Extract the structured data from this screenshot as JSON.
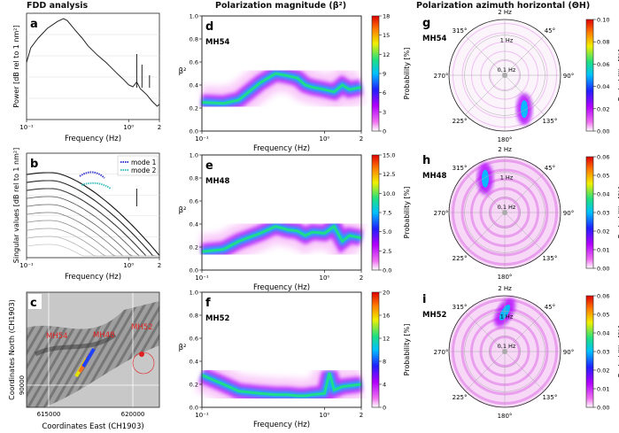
{
  "titles": {
    "fdd": "FDD analysis",
    "magnitude": "Polarization magnitude (β²)",
    "azimuth": "Polarization azimuth horizontal (ΘH)"
  },
  "colors": {
    "power_line": "#222222",
    "mode1": "#3a3ad0",
    "mode2": "#40c0c0",
    "grid": "#dddddd",
    "colormap": [
      "#ffffff",
      "#f070f0",
      "#b000ff",
      "#2020ff",
      "#00c0ff",
      "#20e080",
      "#f0f000",
      "#ff8000",
      "#e00000"
    ]
  },
  "panels": {
    "a": {
      "letter": "a",
      "ylabel": "Power [dB rel to 1 nm²]",
      "xlabel": "Frequency (Hz)",
      "xticks": [
        "10⁻¹",
        "10⁰",
        "2"
      ],
      "type": "line",
      "xlim": [
        0.1,
        2
      ],
      "x": [
        0.1,
        0.11,
        0.13,
        0.16,
        0.2,
        0.23,
        0.25,
        0.3,
        0.35,
        0.4,
        0.5,
        0.6,
        0.7,
        0.8,
        0.9,
        1.0,
        1.1,
        1.2,
        1.3,
        1.5,
        1.7,
        1.9,
        2.0
      ],
      "y": [
        0.55,
        0.7,
        0.8,
        0.9,
        0.97,
        1.0,
        0.98,
        0.88,
        0.8,
        0.72,
        0.62,
        0.55,
        0.48,
        0.42,
        0.37,
        0.32,
        0.3,
        0.35,
        0.28,
        0.22,
        0.15,
        0.1,
        0.12
      ]
    },
    "b": {
      "letter": "b",
      "ylabel": "Singular values [dB rel to 1 nm²]",
      "xlabel": "Frequency (Hz)",
      "xticks": [
        "10⁻¹",
        "10⁰",
        "2"
      ],
      "legend": [
        "mode 1",
        "mode 2"
      ],
      "type": "line",
      "xlim": [
        0.1,
        2
      ],
      "curves": 10
    },
    "c": {
      "letter": "c",
      "ylabel": "Coordinates North (CH1903)",
      "xlabel": "Coordinates East (CH1903)",
      "xticks": [
        "615000",
        "620000"
      ],
      "yticks": [
        "90000"
      ],
      "sites": [
        "MH54",
        "MH48",
        "MH52"
      ]
    },
    "d": {
      "letter": "d",
      "site": "MH54",
      "ylabel": "β²",
      "xlabel": "Frequency (Hz)",
      "yticks": [
        "0.0",
        "0.2",
        "0.4",
        "0.6",
        "0.8",
        "1.0"
      ],
      "xticks": [
        "10⁻¹",
        "10⁰",
        "2"
      ],
      "cbar_label": "Probability [%]",
      "cbar_ticks": [
        "0",
        "3",
        "6",
        "9",
        "12",
        "15",
        "18"
      ],
      "type": "heatmap",
      "ridge_x": [
        0.1,
        0.15,
        0.2,
        0.3,
        0.4,
        0.5,
        0.6,
        0.7,
        0.8,
        1.0,
        1.2,
        1.4,
        1.6,
        2.0
      ],
      "ridge_y": [
        0.25,
        0.24,
        0.27,
        0.42,
        0.5,
        0.48,
        0.46,
        0.4,
        0.38,
        0.36,
        0.34,
        0.4,
        0.36,
        0.38
      ]
    },
    "e": {
      "letter": "e",
      "site": "MH48",
      "ylabel": "β²",
      "xlabel": "Frequency (Hz)",
      "yticks": [
        "0.0",
        "0.2",
        "0.4",
        "0.6",
        "0.8",
        "1.0"
      ],
      "xticks": [
        "10⁻¹",
        "10⁰",
        "2"
      ],
      "cbar_label": "Probability [%]",
      "cbar_ticks": [
        "0.0",
        "2.5",
        "5.0",
        "7.5",
        "10.0",
        "12.5",
        "15.0"
      ],
      "type": "heatmap",
      "ridge_x": [
        0.1,
        0.15,
        0.2,
        0.3,
        0.4,
        0.5,
        0.6,
        0.7,
        0.8,
        1.0,
        1.2,
        1.4,
        1.6,
        2.0
      ],
      "ridge_y": [
        0.16,
        0.18,
        0.25,
        0.32,
        0.38,
        0.35,
        0.34,
        0.3,
        0.33,
        0.32,
        0.38,
        0.25,
        0.3,
        0.28
      ]
    },
    "f": {
      "letter": "f",
      "site": "MH52",
      "ylabel": "β²",
      "xlabel": "Frequency (Hz)",
      "yticks": [
        "0.0",
        "0.2",
        "0.4",
        "0.6",
        "0.8",
        "1.0"
      ],
      "xticks": [
        "10⁻¹",
        "10⁰",
        "2"
      ],
      "cbar_label": "Probability [%]",
      "cbar_ticks": [
        "0",
        "4",
        "8",
        "12",
        "16",
        "20"
      ],
      "type": "heatmap",
      "ridge_x": [
        0.1,
        0.15,
        0.2,
        0.3,
        0.4,
        0.5,
        0.6,
        0.7,
        0.8,
        1.0,
        1.1,
        1.2,
        1.4,
        2.0
      ],
      "ridge_y": [
        0.28,
        0.2,
        0.14,
        0.12,
        0.11,
        0.11,
        0.1,
        0.1,
        0.11,
        0.12,
        0.3,
        0.15,
        0.18,
        0.2
      ]
    },
    "g": {
      "letter": "g",
      "site": "MH54",
      "type": "polar",
      "angles": [
        "2 Hz",
        "45°",
        "90°",
        "135°",
        "180°",
        "225°",
        "270°",
        "315°"
      ],
      "ring_labels": [
        "1 Hz",
        "0.1 Hz"
      ],
      "cbar_label": "Probability [%]",
      "cbar_ticks": [
        "0.00",
        "0.02",
        "0.04",
        "0.06",
        "0.08",
        "0.10"
      ],
      "hotspot_deg": 150
    },
    "h": {
      "letter": "h",
      "site": "MH48",
      "type": "polar",
      "angles": [
        "2 Hz",
        "45°",
        "90°",
        "135°",
        "180°",
        "225°",
        "270°",
        "315°"
      ],
      "ring_labels": [
        "1 Hz",
        "0.1 Hz"
      ],
      "cbar_label": "Probability [%]",
      "cbar_ticks": [
        "0.00",
        "0.01",
        "0.02",
        "0.03",
        "0.04",
        "0.05",
        "0.06"
      ],
      "hotspot_deg": 330
    },
    "i": {
      "letter": "i",
      "site": "MH52",
      "type": "polar",
      "angles": [
        "2 Hz",
        "45°",
        "90°",
        "135°",
        "180°",
        "225°",
        "270°",
        "315°"
      ],
      "ring_labels": [
        "1 Hz",
        "0.1 Hz"
      ],
      "cbar_label": "Probability [%]",
      "cbar_ticks": [
        "0.00",
        "0.01",
        "0.02",
        "0.03",
        "0.04",
        "0.05",
        "0.06"
      ],
      "hotspot_deg": 0
    }
  }
}
